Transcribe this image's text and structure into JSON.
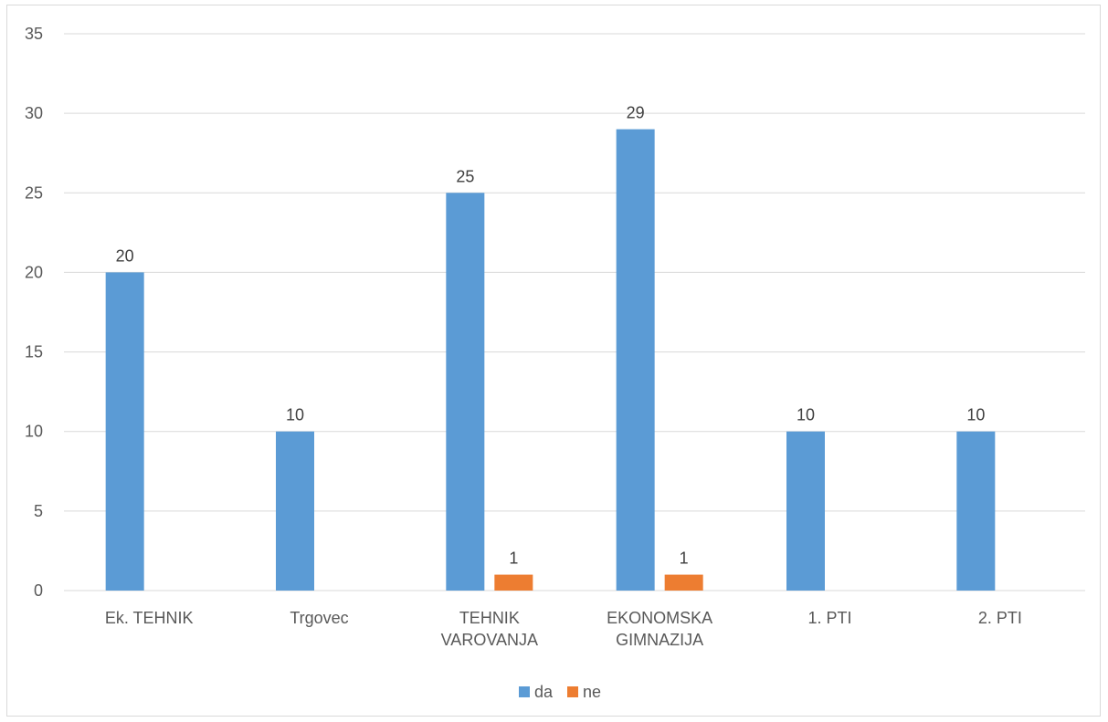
{
  "chart_data": {
    "type": "bar",
    "categories": [
      [
        "Ek. TEHNIK"
      ],
      [
        "Trgovec"
      ],
      [
        "TEHNIK",
        "VAROVANJA"
      ],
      [
        "EKONOMSKA",
        "GIMNAZIJA"
      ],
      [
        "1. PTI"
      ],
      [
        "2. PTI"
      ]
    ],
    "series": [
      {
        "name": "da",
        "color": "#5b9bd5",
        "values": [
          20,
          10,
          25,
          29,
          10,
          10
        ]
      },
      {
        "name": "ne",
        "color": "#ed7d31",
        "values": [
          0,
          0,
          1,
          1,
          0,
          0
        ]
      }
    ],
    "data_labels": {
      "da": [
        "20",
        "10",
        "25",
        "29",
        "10",
        "10"
      ],
      "ne": [
        "",
        "",
        "1",
        "1",
        "",
        ""
      ]
    },
    "ylim": [
      0,
      35
    ],
    "yticks": [
      0,
      5,
      10,
      15,
      20,
      25,
      30,
      35
    ],
    "grid": true,
    "legend_position": "bottom",
    "title": "",
    "xlabel": "",
    "ylabel": ""
  }
}
